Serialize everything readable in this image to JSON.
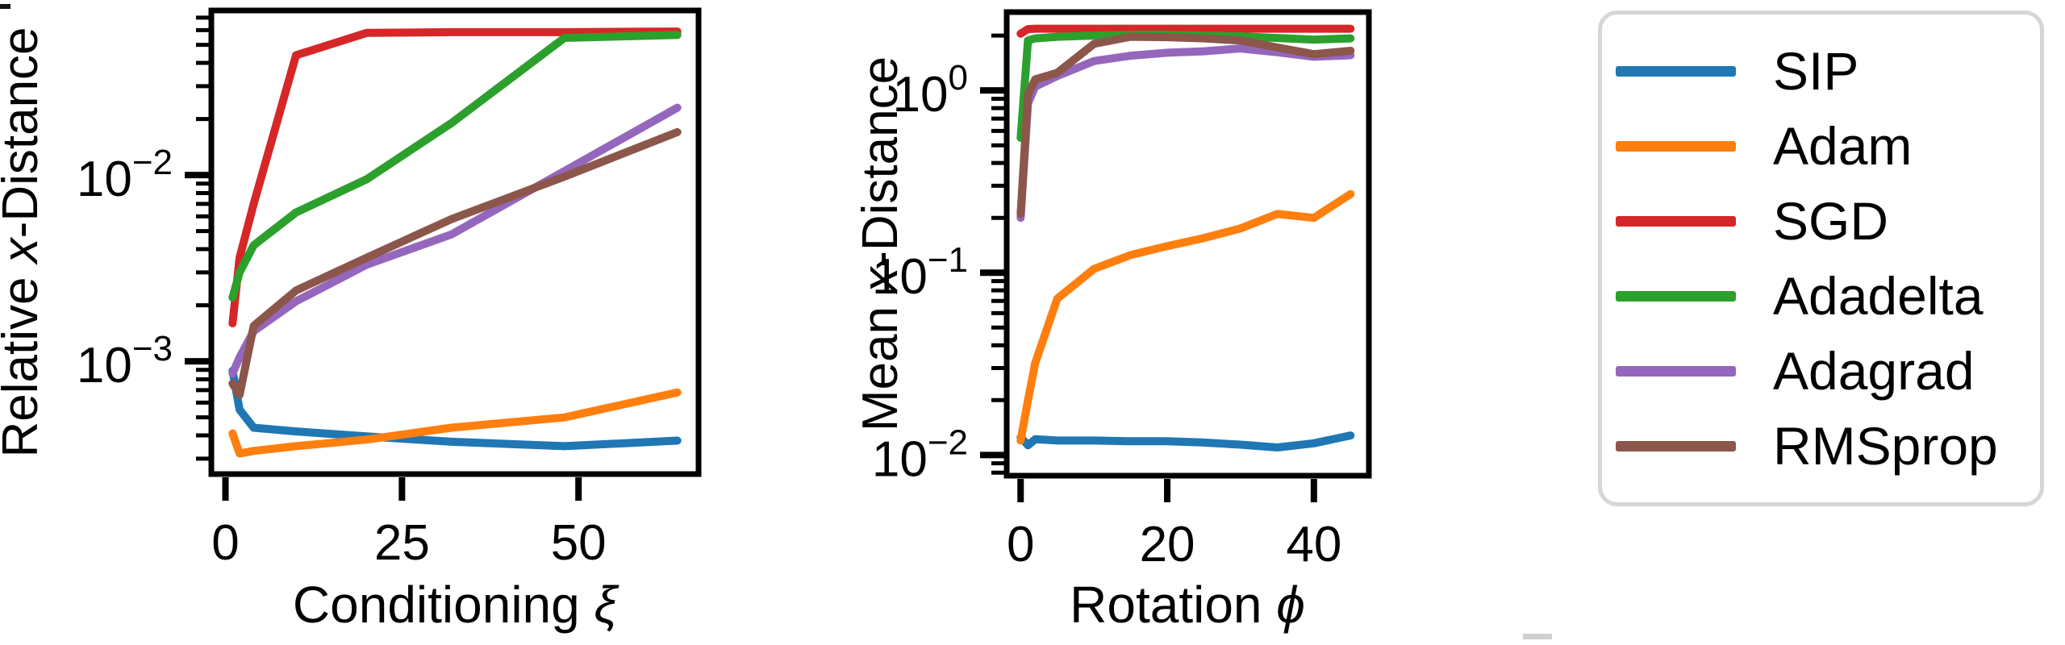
{
  "chart_data": [
    {
      "id": "conditioning",
      "type": "line",
      "title": "",
      "xlabel": {
        "prefix": "Conditioning ",
        "symbol": "ξ",
        "suffix": ""
      },
      "ylabel": {
        "prefix": "Relative ",
        "symbol": "x",
        "suffix": "-Distance"
      },
      "x_scale": "linear",
      "y_scale": "log",
      "xlim": [
        -2,
        67
      ],
      "ylim": [
        0.000248,
        0.0765
      ],
      "grid": false,
      "xticks": [
        {
          "value": 0,
          "label": "0"
        },
        {
          "value": 25,
          "label": "25"
        },
        {
          "value": 50,
          "label": "50"
        }
      ],
      "yticks": [
        {
          "value": 0.01,
          "base": "10",
          "sup": "−2"
        },
        {
          "value": 0.001,
          "base": "10",
          "sup": "−3"
        }
      ],
      "x": [
        1,
        2,
        4,
        10,
        20,
        32,
        48,
        64
      ],
      "series": [
        {
          "name": "SIP",
          "color": "#1f77b4",
          "values": [
            0.00089,
            0.00055,
            0.00044,
            0.00042,
            0.000395,
            0.00037,
            0.00035,
            0.000375
          ]
        },
        {
          "name": "Adam",
          "color": "#ff7f0e",
          "values": [
            0.00041,
            0.00032,
            0.00033,
            0.00035,
            0.00038,
            0.00044,
            0.0005,
            0.00068
          ]
        },
        {
          "name": "SGD",
          "color": "#d62728",
          "values": [
            0.0016,
            0.0036,
            0.007,
            0.044,
            0.058,
            0.0585,
            0.0585,
            0.059
          ]
        },
        {
          "name": "Adadelta",
          "color": "#2ca02c",
          "values": [
            0.0022,
            0.003,
            0.0042,
            0.0063,
            0.0095,
            0.019,
            0.0545,
            0.0565
          ]
        },
        {
          "name": "Adagrad",
          "color": "#9467bd",
          "values": [
            0.00086,
            0.00105,
            0.00145,
            0.0021,
            0.0033,
            0.0048,
            0.0105,
            0.023
          ]
        },
        {
          "name": "RMSprop",
          "color": "#8c564b",
          "values": [
            0.00076,
            0.00066,
            0.00155,
            0.0024,
            0.0036,
            0.0058,
            0.0098,
            0.017
          ]
        }
      ]
    },
    {
      "id": "rotation",
      "type": "line",
      "title": "",
      "xlabel": {
        "prefix": "Rotation ",
        "symbol": "ϕ",
        "suffix": ""
      },
      "ylabel": {
        "prefix": "Mean ",
        "symbol": "x",
        "suffix": "-Distance"
      },
      "x_scale": "linear",
      "y_scale": "log",
      "xlim": [
        -1.9,
        47.5
      ],
      "ylim": [
        0.0077,
        2.69
      ],
      "grid": false,
      "xticks": [
        {
          "value": 0,
          "label": "0"
        },
        {
          "value": 20,
          "label": "20"
        },
        {
          "value": 40,
          "label": "40"
        }
      ],
      "yticks": [
        {
          "value": 1,
          "base": "10",
          "sup": "0"
        },
        {
          "value": 0.1,
          "base": "10",
          "sup": "−1"
        },
        {
          "value": 0.01,
          "base": "10",
          "sup": "−2"
        }
      ],
      "x": [
        0,
        1,
        2,
        5,
        10,
        15,
        20,
        25,
        30,
        35,
        40,
        45
      ],
      "series": [
        {
          "name": "SIP",
          "color": "#1f77b4",
          "values": [
            0.0125,
            0.0113,
            0.0122,
            0.012,
            0.012,
            0.0119,
            0.0119,
            0.0117,
            0.0114,
            0.011,
            0.0116,
            0.0128
          ]
        },
        {
          "name": "Adam",
          "color": "#ff7f0e",
          "values": [
            0.012,
            0.02,
            0.032,
            0.072,
            0.105,
            0.125,
            0.14,
            0.155,
            0.175,
            0.21,
            0.2,
            0.27
          ]
        },
        {
          "name": "SGD",
          "color": "#d62728",
          "values": [
            2.05,
            2.17,
            2.18,
            2.18,
            2.18,
            2.18,
            2.18,
            2.18,
            2.18,
            2.18,
            2.18,
            2.18
          ]
        },
        {
          "name": "Adadelta",
          "color": "#2ca02c",
          "values": [
            0.55,
            1.88,
            1.93,
            1.97,
            2.0,
            2.02,
            2.02,
            2.0,
            1.98,
            1.94,
            1.9,
            1.93
          ]
        },
        {
          "name": "Adagrad",
          "color": "#9467bd",
          "values": [
            0.2,
            0.85,
            1.05,
            1.2,
            1.45,
            1.55,
            1.61,
            1.64,
            1.7,
            1.62,
            1.53,
            1.56
          ]
        },
        {
          "name": "RMSprop",
          "color": "#8c564b",
          "values": [
            0.21,
            0.95,
            1.15,
            1.25,
            1.8,
            1.97,
            1.96,
            1.93,
            1.88,
            1.72,
            1.58,
            1.65
          ]
        }
      ]
    }
  ],
  "legend": {
    "position": "right",
    "items": [
      {
        "label": "SIP",
        "color": "#1f77b4"
      },
      {
        "label": "Adam",
        "color": "#ff7f0e"
      },
      {
        "label": "SGD",
        "color": "#d62728"
      },
      {
        "label": "Adadelta",
        "color": "#2ca02c"
      },
      {
        "label": "Adagrad",
        "color": "#9467bd"
      },
      {
        "label": "RMSprop",
        "color": "#8c564b"
      }
    ]
  }
}
